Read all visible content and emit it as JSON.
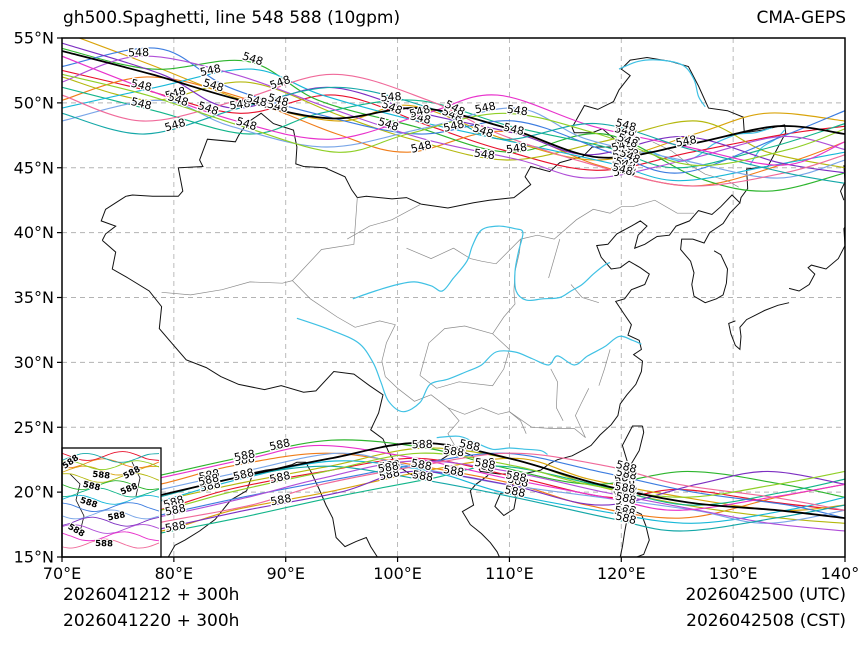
{
  "header": {
    "title_left": "gh500.Spaghetti, line 548 588 (10gpm)",
    "title_right": "CMA-GEPS"
  },
  "footer": {
    "left_line1": "2026041212 + 300h",
    "left_line2": "2026041220 + 300h",
    "right_line1": "2026042500 (UTC)",
    "right_line2": "2026042508 (CST)"
  },
  "axes": {
    "x_ticks": [
      "70°E",
      "80°E",
      "90°E",
      "100°E",
      "110°E",
      "120°E",
      "130°E",
      "140°E"
    ],
    "y_ticks": [
      "55°N",
      "50°N",
      "45°N",
      "40°N",
      "35°N",
      "30°N",
      "25°N",
      "20°N",
      "15°N"
    ],
    "lon_range": [
      70,
      140
    ],
    "lat_range": [
      15,
      55
    ],
    "grid": "dashed"
  },
  "map_colors": {
    "coast": "#111111",
    "province": "#8c8c8c",
    "river": "#3fc1e4"
  },
  "chart_data": {
    "type": "line",
    "subtype": "ensemble_spaghetti_contours",
    "title": "gh500.Spaghetti, line 548 588 (10gpm)",
    "model": "CMA-GEPS",
    "levels": [
      548,
      588
    ],
    "unit": "10gpm",
    "x_range_lon_e": [
      70,
      140
    ],
    "y_range_lat_n": [
      15,
      55
    ],
    "lons": [
      70,
      78,
      86,
      94,
      102,
      110,
      118,
      126,
      134,
      140
    ],
    "control": {
      "color": "#000000",
      "l548": [
        54.0,
        52.2,
        50.2,
        48.8,
        49.6,
        48.0,
        45.8,
        46.8,
        48.2,
        47.6
      ],
      "l588": [
        18.0,
        19.6,
        21.2,
        22.6,
        23.8,
        22.6,
        20.6,
        19.2,
        18.6,
        18.0
      ]
    },
    "members": [
      {
        "color": "#e8112d",
        "l548": [
          52.5,
          51.0,
          49.2,
          50.6,
          48.2,
          46.4,
          44.8,
          46.2,
          47.6,
          48.2
        ],
        "l588": [
          17.0,
          18.6,
          20.2,
          21.6,
          22.6,
          21.2,
          19.6,
          20.2,
          19.2,
          18.6
        ]
      },
      {
        "color": "#f07d1a",
        "l548": [
          50.2,
          52.0,
          50.4,
          47.6,
          46.2,
          47.8,
          45.2,
          43.6,
          45.4,
          47.0
        ],
        "l588": [
          19.0,
          20.6,
          22.0,
          23.0,
          22.0,
          20.6,
          19.0,
          18.0,
          19.6,
          20.6
        ]
      },
      {
        "color": "#d9a40b",
        "l548": [
          55.5,
          53.0,
          50.2,
          48.6,
          49.8,
          47.2,
          45.6,
          47.6,
          49.2,
          48.6
        ],
        "l588": [
          16.0,
          17.0,
          18.6,
          20.0,
          21.6,
          22.6,
          21.0,
          19.6,
          18.6,
          19.0
        ]
      },
      {
        "color": "#b5b80f",
        "l548": [
          52.0,
          50.2,
          51.6,
          49.0,
          47.2,
          45.6,
          47.0,
          48.6,
          46.2,
          45.0
        ],
        "l588": [
          18.0,
          19.0,
          20.6,
          22.0,
          23.4,
          22.4,
          20.6,
          19.0,
          18.0,
          17.6
        ]
      },
      {
        "color": "#2db52d",
        "l548": [
          54.2,
          52.6,
          53.2,
          50.2,
          48.2,
          46.2,
          47.6,
          44.2,
          43.2,
          44.6
        ],
        "l588": [
          20.0,
          21.0,
          22.6,
          24.0,
          23.4,
          22.0,
          20.6,
          21.6,
          20.6,
          19.6
        ]
      },
      {
        "color": "#12b58a",
        "l548": [
          51.2,
          49.4,
          47.6,
          49.2,
          50.2,
          48.2,
          46.6,
          45.0,
          46.6,
          48.4
        ],
        "l588": [
          15.6,
          16.6,
          18.0,
          19.6,
          21.0,
          22.0,
          20.6,
          19.0,
          20.0,
          21.0
        ]
      },
      {
        "color": "#18b8d8",
        "l548": [
          49.6,
          51.2,
          52.6,
          50.6,
          48.6,
          47.0,
          45.4,
          44.0,
          45.2,
          46.2
        ],
        "l588": [
          17.6,
          19.0,
          21.0,
          22.4,
          21.6,
          20.0,
          18.6,
          17.6,
          18.6,
          19.6
        ]
      },
      {
        "color": "#3d7de0",
        "l548": [
          52.8,
          54.2,
          51.2,
          49.0,
          47.6,
          48.6,
          46.2,
          44.6,
          47.2,
          49.4
        ],
        "l588": [
          16.6,
          18.0,
          19.6,
          21.0,
          22.0,
          23.0,
          21.6,
          20.0,
          19.0,
          18.0
        ]
      },
      {
        "color": "#7aa6e8",
        "l548": [
          48.6,
          50.2,
          48.2,
          46.6,
          48.0,
          49.6,
          47.2,
          45.6,
          44.2,
          45.6
        ],
        "l588": [
          18.6,
          20.0,
          21.6,
          23.0,
          22.0,
          20.6,
          19.6,
          18.6,
          17.6,
          18.6
        ]
      },
      {
        "color": "#7d2fc2",
        "l548": [
          54.6,
          52.2,
          49.6,
          51.2,
          49.2,
          47.6,
          46.0,
          47.4,
          45.4,
          44.6
        ],
        "l588": [
          15.6,
          17.0,
          18.6,
          20.0,
          21.6,
          20.6,
          19.0,
          20.6,
          21.6,
          20.6
        ]
      },
      {
        "color": "#b04fd8",
        "l548": [
          51.6,
          53.6,
          52.2,
          49.6,
          47.2,
          45.6,
          44.2,
          45.6,
          47.4,
          46.4
        ],
        "l588": [
          17.0,
          18.0,
          19.6,
          21.0,
          22.4,
          21.6,
          20.0,
          18.6,
          17.6,
          17.0
        ]
      },
      {
        "color": "#e832cc",
        "l548": [
          53.6,
          51.2,
          48.6,
          47.2,
          49.2,
          50.6,
          48.2,
          46.6,
          45.2,
          47.0
        ],
        "l588": [
          19.6,
          21.0,
          22.6,
          23.6,
          22.6,
          21.0,
          19.6,
          18.6,
          19.6,
          20.6
        ]
      },
      {
        "color": "#f06a9a",
        "l548": [
          50.6,
          48.6,
          50.2,
          52.2,
          50.2,
          47.6,
          45.2,
          43.6,
          44.6,
          46.0
        ],
        "l588": [
          16.0,
          17.6,
          19.0,
          20.6,
          22.0,
          23.0,
          22.0,
          20.6,
          19.6,
          18.6
        ]
      },
      {
        "color": "#15a8a8",
        "l548": [
          49.2,
          47.6,
          49.6,
          51.2,
          49.6,
          47.2,
          48.4,
          46.4,
          44.6,
          43.8
        ],
        "l588": [
          18.0,
          19.6,
          21.0,
          22.0,
          21.0,
          19.6,
          18.0,
          17.0,
          18.0,
          19.0
        ]
      },
      {
        "color": "#8fcf26",
        "l548": [
          52.2,
          50.6,
          48.2,
          46.2,
          47.6,
          49.2,
          47.6,
          45.2,
          46.4,
          48.0
        ],
        "l588": [
          17.6,
          18.6,
          20.0,
          21.6,
          23.0,
          22.0,
          20.6,
          19.6,
          20.6,
          21.6
        ]
      }
    ]
  }
}
